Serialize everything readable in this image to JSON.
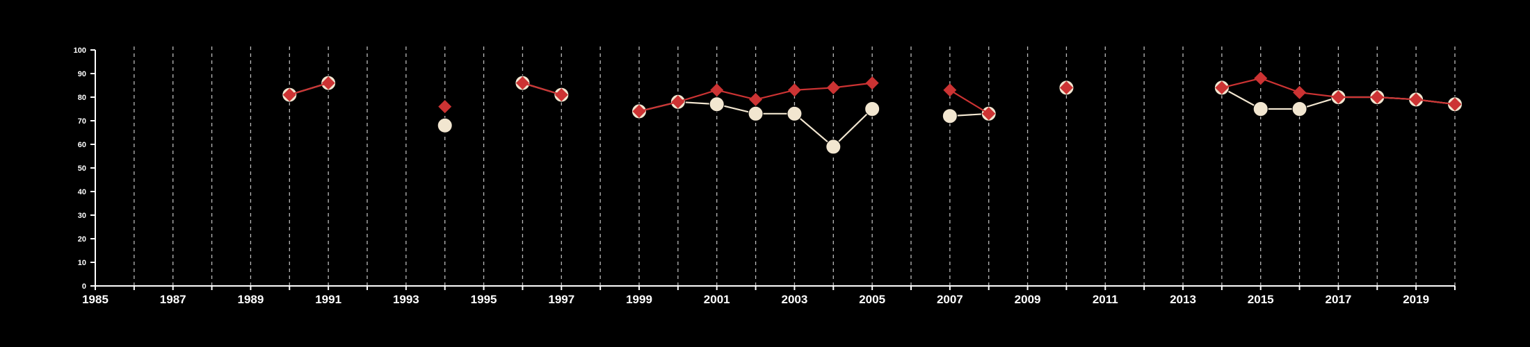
{
  "chart_data": {
    "type": "line",
    "title": "",
    "xlabel": "",
    "ylabel": "",
    "xlim": [
      1985,
      2020
    ],
    "ylim": [
      0,
      100
    ],
    "x_ticks": [
      "1985",
      "1987",
      "1989",
      "1991",
      "1993",
      "1995",
      "1997",
      "1999",
      "2001",
      "2003",
      "2005",
      "2007",
      "2009",
      "2011",
      "2013",
      "2015",
      "2017",
      "2019"
    ],
    "y_ticks": [
      "0",
      "10",
      "20",
      "30",
      "40",
      "50",
      "60",
      "70",
      "80",
      "90",
      "100"
    ],
    "grid": "vertical dashed lines at every year",
    "legend": "none",
    "colors": {
      "background": "#000000",
      "axis": "#ffffff",
      "grid": "#bbbbbb",
      "series_a": "#f2e6d0",
      "series_b": "#cc3333"
    },
    "series": [
      {
        "marker": "circle",
        "color": "#f2e6d0",
        "segments": [
          [
            [
              1990,
              81
            ],
            [
              1991,
              86
            ]
          ],
          [
            [
              1994,
              68
            ]
          ],
          [
            [
              1996,
              86
            ],
            [
              1997,
              81
            ]
          ],
          [
            [
              1999,
              74
            ],
            [
              2000,
              78
            ],
            [
              2001,
              77
            ],
            [
              2002,
              73
            ],
            [
              2003,
              73
            ],
            [
              2004,
              59
            ],
            [
              2005,
              75
            ]
          ],
          [
            [
              2007,
              72
            ],
            [
              2008,
              73
            ]
          ],
          [
            [
              2010,
              84
            ]
          ],
          [
            [
              2014,
              84
            ],
            [
              2015,
              75
            ],
            [
              2016,
              75
            ],
            [
              2017,
              80
            ],
            [
              2018,
              80
            ],
            [
              2019,
              79
            ],
            [
              2020,
              77
            ]
          ]
        ]
      },
      {
        "marker": "diamond",
        "color": "#cc3333",
        "segments": [
          [
            [
              1990,
              81
            ],
            [
              1991,
              86
            ]
          ],
          [
            [
              1994,
              76
            ]
          ],
          [
            [
              1996,
              86
            ],
            [
              1997,
              81
            ]
          ],
          [
            [
              1999,
              74
            ],
            [
              2000,
              78
            ],
            [
              2001,
              83
            ],
            [
              2002,
              79
            ],
            [
              2003,
              83
            ],
            [
              2004,
              84
            ],
            [
              2005,
              86
            ]
          ],
          [
            [
              2007,
              83
            ],
            [
              2008,
              73
            ]
          ],
          [
            [
              2010,
              84
            ]
          ],
          [
            [
              2014,
              84
            ],
            [
              2015,
              88
            ],
            [
              2016,
              82
            ],
            [
              2017,
              80
            ],
            [
              2018,
              80
            ],
            [
              2019,
              79
            ],
            [
              2020,
              77
            ]
          ]
        ]
      }
    ]
  }
}
